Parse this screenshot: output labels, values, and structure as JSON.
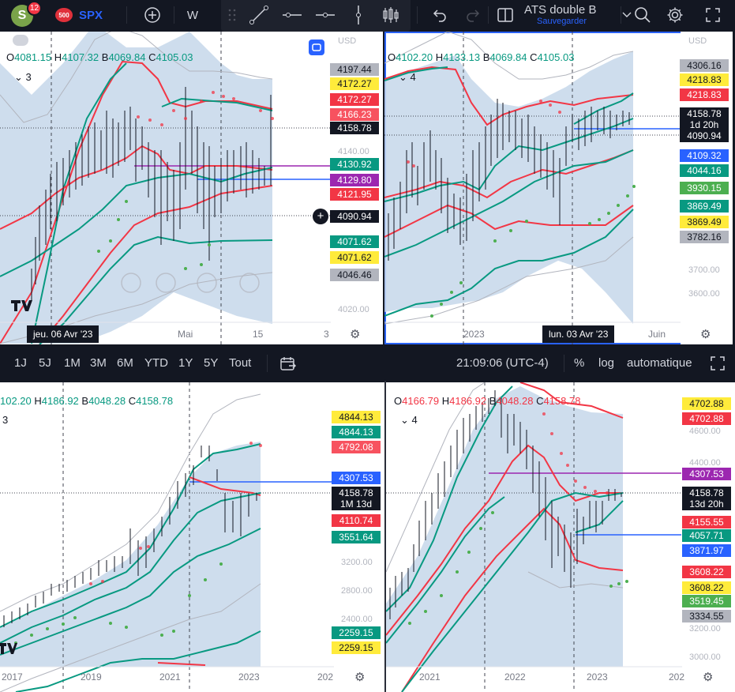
{
  "toolbar": {
    "avatar_letter": "S",
    "notifications": "12",
    "symbol_badge": "500",
    "symbol": "SPX",
    "add_symbol_icon": "plus-circle-icon",
    "interval": "W",
    "tools": [
      "drag-handle-icon",
      "trend-line-icon",
      "horizontal-line-icon",
      "horizontal-ray-icon",
      "vertical-line-icon",
      "candles-icon"
    ],
    "undo_icon": "undo-icon",
    "redo_icon": "redo-icon",
    "layout_icon": "layout-icon",
    "layout_name": "ATS double B",
    "save_label": "Sauvegarder",
    "search_icon": "search-icon",
    "settings_icon": "gear-icon",
    "fullscreen_icon": "fullscreen-icon"
  },
  "bottombar": {
    "ranges": [
      "1J",
      "5J",
      "1M",
      "3M",
      "6M",
      "YTD",
      "1Y",
      "5Y",
      "Tout"
    ],
    "time": "21:09:06 (UTC-4)",
    "percent": "%",
    "log": "log",
    "auto": "automatique"
  },
  "panes": {
    "tl": {
      "ohlc": {
        "o": "4081.15",
        "h": "4107.32",
        "b": "4069.84",
        "c": "4105.03"
      },
      "legend_count": "3",
      "axis_unit": "USD",
      "axis_ticks": [
        "4140.00",
        "4020.00"
      ],
      "x_labels": [
        "Mai",
        "15",
        "3"
      ],
      "x_pill": "jeu. 06 Avr '23",
      "labels": [
        "4197.44",
        "4172.27",
        "4172.27",
        "4166.23",
        "4158.78",
        "4130.92",
        "4129.80",
        "4121.95",
        "4090.94",
        "4071.62",
        "4071.62",
        "4046.46"
      ]
    },
    "tr": {
      "ohlc": {
        "o": "4102.20",
        "h": "4133.13",
        "b": "4069.84",
        "c": "4105.03"
      },
      "legend_count": "4",
      "axis_unit": "USD",
      "axis_ticks": [
        "3700.00",
        "3600.00"
      ],
      "x_labels": [
        "2023",
        "Juin"
      ],
      "x_pill": "lun. 03 Avr '23",
      "labels": [
        "4306.16",
        "4218.83",
        "4218.83",
        "4158.78",
        "1d 20h",
        "4090.94",
        "4109.32",
        "4044.16",
        "3930.15",
        "3869.49",
        "3869.49",
        "3782.16"
      ]
    },
    "bl": {
      "ohlc": {
        "o": "102.20",
        "h": "4186.92",
        "b": "4048.28",
        "c": "4158.78"
      },
      "legend_count": "3",
      "axis_ticks": [
        "3200.00",
        "2800.00",
        "2400.00"
      ],
      "x_labels": [
        "2017",
        "2019",
        "2021",
        "2023",
        "202"
      ],
      "labels": [
        "4844.13",
        "4844.13",
        "4792.08",
        "4307.53",
        "4158.78",
        "1M 13d",
        "4110.74",
        "3551.64",
        "2259.15",
        "2259.15"
      ]
    },
    "br": {
      "ohlc": {
        "o": "4166.79",
        "h": "4186.92",
        "b": "4048.28",
        "c": "4158.78"
      },
      "legend_count": "4",
      "axis_ticks": [
        "4600.00",
        "4400.00",
        "3200.00",
        "3000.00"
      ],
      "x_labels": [
        "2021",
        "2022",
        "2023",
        "202"
      ],
      "labels": [
        "4702.88",
        "4702.88",
        "4307.53",
        "4158.78",
        "13d 20h",
        "4155.55",
        "4057.71",
        "3871.97",
        "3608.22",
        "3608.22",
        "3519.45",
        "3334.55"
      ]
    }
  },
  "colors": {
    "green": "#089981",
    "red": "#f23645",
    "purple": "#9c27b0",
    "blue": "#2962ff",
    "yellow": "#ffeb3b"
  }
}
